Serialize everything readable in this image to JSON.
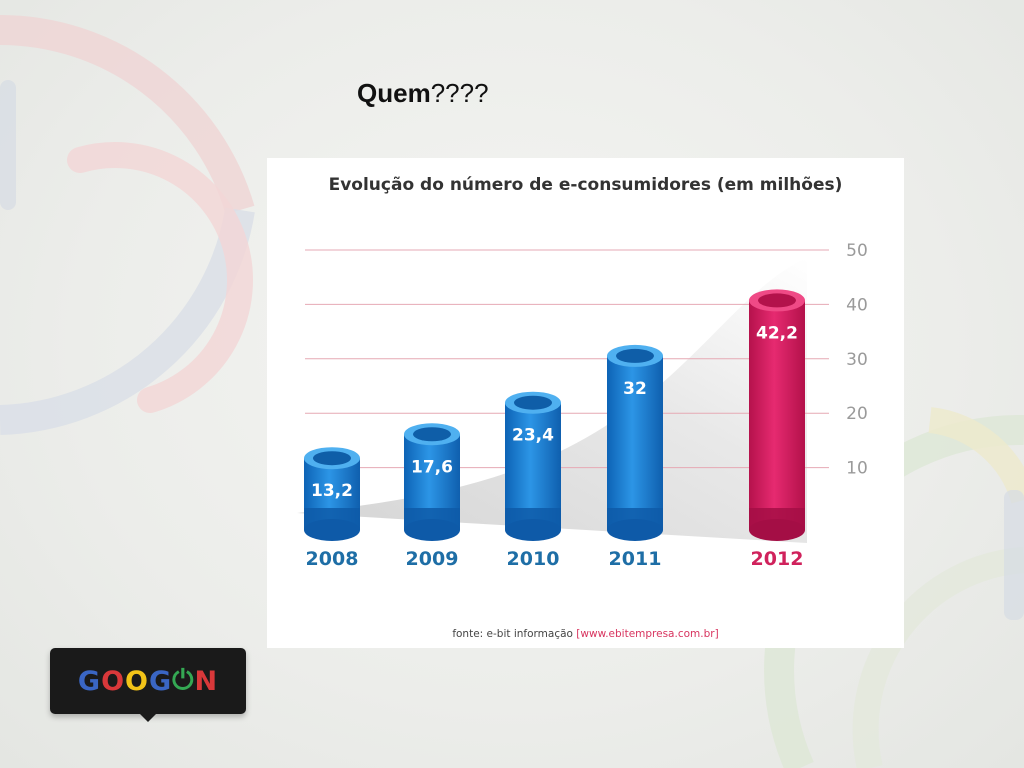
{
  "slide": {
    "title_bold": "Quem",
    "title_rest": "????"
  },
  "chart_data": {
    "type": "bar",
    "title": "Evolução do número de e-consumidores (em milhões)",
    "categories": [
      "2008",
      "2009",
      "2010",
      "2011",
      "2012"
    ],
    "values": [
      13.2,
      17.6,
      23.4,
      32,
      42.2
    ],
    "value_labels": [
      "13,2",
      "17,6",
      "23,4",
      "32",
      "42,2"
    ],
    "yticks": [
      "10",
      "20",
      "30",
      "40",
      "50"
    ],
    "ylim": [
      0,
      50
    ],
    "grid": true,
    "colors": {
      "default_bar": "#1f7fd0",
      "default_bar_dark": "#0e5aa8",
      "highlight_bar": "#d81b60",
      "highlight_bar_dark": "#a40e45",
      "year_label": "#1e6ea6",
      "highlight_year_label": "#d0225c",
      "grid": "#e6a9b4"
    },
    "highlight_index": 4
  },
  "source": {
    "prefix": "fonte: e-bit informação",
    "link": "[www.ebitempresa.com.br]"
  },
  "logo": {
    "letters": [
      {
        "char": "G",
        "color": "#3a66c4"
      },
      {
        "char": "O",
        "color": "#d9383a"
      },
      {
        "char": "O",
        "color": "#f2c318"
      },
      {
        "char": "G",
        "color": "#3a66c4"
      },
      {
        "char": "⏻",
        "color": "#34a853"
      },
      {
        "char": "N",
        "color": "#d9383a"
      }
    ]
  }
}
